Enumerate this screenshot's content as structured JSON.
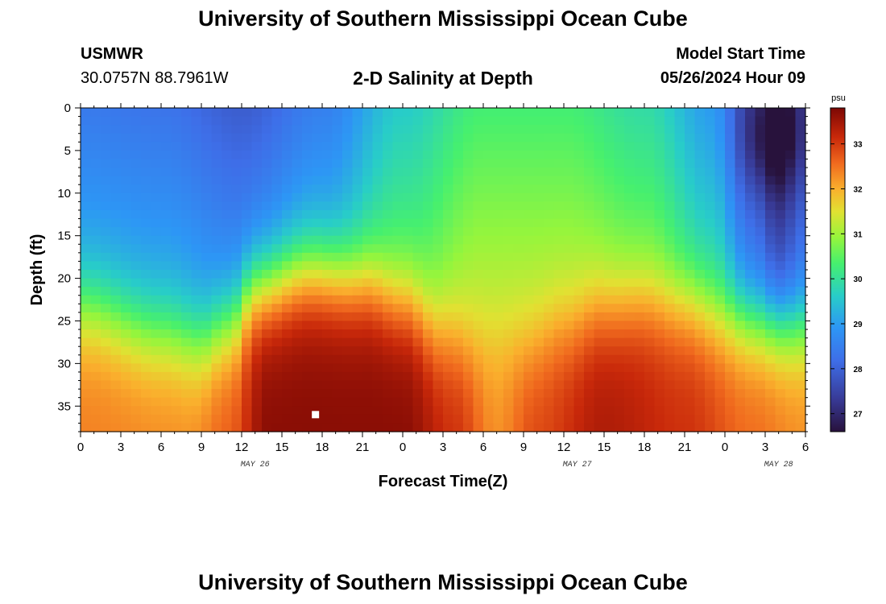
{
  "header": {
    "title": "University of Southern Mississippi Ocean Cube",
    "station_name": "USMWR",
    "station_coords": "30.0757N  88.7961W",
    "subtitle": "2-D Salinity at Depth",
    "start_label": "Model Start Time",
    "start_value": "05/26/2024 Hour 09"
  },
  "footer": {
    "title": "University of Southern Mississippi Ocean Cube"
  },
  "chart_data": {
    "type": "heatmap",
    "title": "2-D Salinity at Depth",
    "xlabel": "Forecast Time(Z)",
    "ylabel": "Depth (ft)",
    "colorbar_unit": "psu",
    "x_ticks": [
      "0",
      "3",
      "6",
      "9",
      "12",
      "15",
      "18",
      "21",
      "0",
      "3",
      "6",
      "9",
      "12",
      "15",
      "18",
      "21",
      "0",
      "3",
      "6"
    ],
    "x_range_hours": [
      0,
      54
    ],
    "date_labels": [
      {
        "text": "MAY 26",
        "hour": 13
      },
      {
        "text": "MAY 27",
        "hour": 37
      },
      {
        "text": "MAY 28",
        "hour": 52
      }
    ],
    "y_ticks": [
      0,
      5,
      10,
      15,
      20,
      25,
      30,
      35
    ],
    "y_range_ft": [
      0,
      38
    ],
    "color_range_psu": [
      26.6,
      33.8
    ],
    "colorbar_ticks": [
      27,
      28,
      29,
      30,
      31,
      32,
      33
    ],
    "marker": {
      "hour": 17.5,
      "depth": 36
    },
    "surface_salinity_points": [
      {
        "hour": 0,
        "psu": 28.4
      },
      {
        "hour": 6,
        "psu": 28.3
      },
      {
        "hour": 12,
        "psu": 27.9
      },
      {
        "hour": 18,
        "psu": 28.5
      },
      {
        "hour": 24,
        "psu": 29.6
      },
      {
        "hour": 30,
        "psu": 30.3
      },
      {
        "hour": 36,
        "psu": 30.3
      },
      {
        "hour": 42,
        "psu": 29.9
      },
      {
        "hour": 47,
        "psu": 29.0
      },
      {
        "hour": 50,
        "psu": 27.6
      },
      {
        "hour": 52,
        "psu": 26.8
      },
      {
        "hour": 54,
        "psu": 27.5
      }
    ],
    "halocline_depth_points": [
      {
        "hour": 0,
        "ft": 24
      },
      {
        "hour": 6,
        "ft": 27
      },
      {
        "hour": 9,
        "ft": 28
      },
      {
        "hour": 11,
        "ft": 26
      },
      {
        "hour": 13,
        "ft": 21.5
      },
      {
        "hour": 17,
        "ft": 19.5
      },
      {
        "hour": 21,
        "ft": 20.5
      },
      {
        "hour": 24,
        "ft": 23
      },
      {
        "hour": 27,
        "ft": 27
      },
      {
        "hour": 30,
        "ft": 29.5
      },
      {
        "hour": 33,
        "ft": 29
      },
      {
        "hour": 36,
        "ft": 26.5
      },
      {
        "hour": 39,
        "ft": 24
      },
      {
        "hour": 42,
        "ft": 23
      },
      {
        "hour": 45,
        "ft": 23.5
      },
      {
        "hour": 48,
        "ft": 25
      },
      {
        "hour": 51,
        "ft": 25.5
      },
      {
        "hour": 54,
        "ft": 26
      }
    ],
    "bottom_salinity_points": [
      {
        "hour": 0,
        "psu": 32.4
      },
      {
        "hour": 8,
        "psu": 32.3
      },
      {
        "hour": 11,
        "psu": 32.7
      },
      {
        "hour": 14,
        "psu": 33.7
      },
      {
        "hour": 24,
        "psu": 33.7
      },
      {
        "hour": 28,
        "psu": 33.1
      },
      {
        "hour": 31,
        "psu": 32.3
      },
      {
        "hour": 34,
        "psu": 32.9
      },
      {
        "hour": 39,
        "psu": 33.4
      },
      {
        "hour": 45,
        "psu": 33.1
      },
      {
        "hour": 50,
        "psu": 32.6
      },
      {
        "hour": 54,
        "psu": 32.3
      }
    ]
  }
}
